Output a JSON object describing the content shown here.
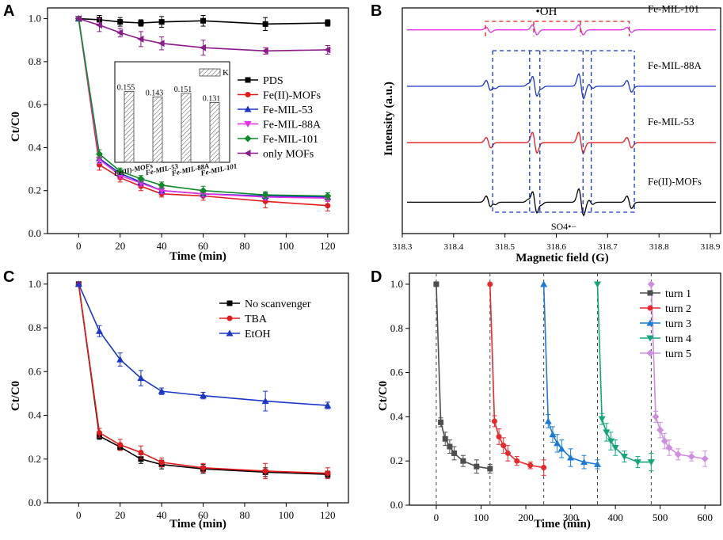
{
  "chart_data": [
    {
      "panel": "A",
      "type": "line",
      "xlabel": "Time (min)",
      "ylabel": "Ct/C0",
      "xlim": [
        -15,
        130
      ],
      "ylim": [
        0,
        1.05
      ],
      "xticks": [
        0,
        20,
        40,
        60,
        80,
        100,
        120
      ],
      "yticks": [
        0.0,
        0.2,
        0.4,
        0.6,
        0.8,
        1.0
      ],
      "xtick_labels": [
        "0",
        "20",
        "40",
        "60",
        "80",
        "100",
        "120"
      ],
      "ytick_labels": [
        "0.0",
        "0.2",
        "0.4",
        "0.6",
        "0.8",
        "1.0"
      ],
      "legend_position": "right",
      "x": [
        0,
        10,
        20,
        30,
        40,
        60,
        90,
        120
      ],
      "series": [
        {
          "name": "PDS",
          "color": "#000000",
          "marker": "square",
          "values": [
            1.0,
            0.995,
            0.985,
            0.98,
            0.985,
            0.99,
            0.975,
            0.98
          ],
          "err": [
            0.01,
            0.02,
            0.02,
            0.015,
            0.025,
            0.025,
            0.03,
            0.015
          ]
        },
        {
          "name": "Fe(II)-MOFs",
          "color": "#e31a1c",
          "marker": "circle",
          "values": [
            1.0,
            0.32,
            0.26,
            0.22,
            0.185,
            0.175,
            0.15,
            0.13
          ],
          "err": [
            0.0,
            0.025,
            0.02,
            0.02,
            0.015,
            0.02,
            0.03,
            0.025
          ]
        },
        {
          "name": "Fe-MIL-53",
          "color": "#1a35c8",
          "marker": "triangle-up",
          "values": [
            1.0,
            0.35,
            0.28,
            0.24,
            0.2,
            0.185,
            0.175,
            0.17
          ],
          "err": [
            0.0,
            0.02,
            0.015,
            0.015,
            0.015,
            0.015,
            0.015,
            0.02
          ]
        },
        {
          "name": "Fe-MIL-88A",
          "color": "#e62ee6",
          "marker": "triangle-down",
          "values": [
            1.0,
            0.345,
            0.27,
            0.235,
            0.2,
            0.185,
            0.17,
            0.165
          ],
          "err": [
            0.0,
            0.02,
            0.015,
            0.015,
            0.015,
            0.015,
            0.015,
            0.015
          ]
        },
        {
          "name": "Fe-MIL-101",
          "color": "#0f8a2a",
          "marker": "diamond",
          "values": [
            1.0,
            0.37,
            0.29,
            0.255,
            0.225,
            0.2,
            0.18,
            0.175
          ],
          "err": [
            0.0,
            0.02,
            0.015,
            0.015,
            0.015,
            0.02,
            0.015,
            0.015
          ]
        },
        {
          "name": "only MOFs",
          "color": "#8b1a8b",
          "marker": "triangle-left",
          "values": [
            1.0,
            0.97,
            0.935,
            0.905,
            0.885,
            0.865,
            0.85,
            0.855
          ],
          "err": [
            0.0,
            0.03,
            0.02,
            0.035,
            0.03,
            0.035,
            0.015,
            0.02
          ]
        }
      ],
      "inset": {
        "type": "bar",
        "legend_label": "K",
        "categories": [
          "Fe(II)-MOFs",
          "Fe-MIL-53",
          "Fe-MIL-88A",
          "Fe-MIL-101"
        ],
        "values": [
          0.155,
          0.143,
          0.151,
          0.131
        ],
        "value_labels": [
          "0.155",
          "0.143",
          "0.151",
          "0.131"
        ],
        "ylim": [
          0,
          0.22
        ]
      }
    },
    {
      "panel": "B",
      "type": "line",
      "xlabel": "Magnetic field (G)",
      "ylabel": "Intensity (a.u.)",
      "xlim": [
        318.3,
        318.92
      ],
      "xticks": [
        318.3,
        318.4,
        318.5,
        318.6,
        318.7,
        318.8,
        318.9
      ],
      "xtick_labels": [
        "318.3",
        "318.4",
        "318.5",
        "318.6",
        "318.7",
        "318.8",
        "318.9"
      ],
      "oh_label": "•OH",
      "so4_label": "SO4•−",
      "oh_peak_ratios": [
        1,
        2,
        2,
        1
      ],
      "series": [
        {
          "name": "Fe-MIL-101",
          "color": "#e62ee6",
          "baseline": 3.25,
          "amplitude": 0.12
        },
        {
          "name": "Fe-MIL-88A",
          "color": "#1a35c8",
          "baseline": 2.35,
          "amplitude": 0.28
        },
        {
          "name": "Fe-MIL-53",
          "color": "#e31a1c",
          "baseline": 1.45,
          "amplitude": 0.25
        },
        {
          "name": "Fe(II)-MOFs",
          "color": "#000000",
          "baseline": 0.5,
          "amplitude": 0.3
        }
      ]
    },
    {
      "panel": "C",
      "type": "line",
      "xlabel": "Time (min)",
      "ylabel": "Ct/C0",
      "xlim": [
        -15,
        130
      ],
      "ylim": [
        0,
        1.05
      ],
      "xticks": [
        0,
        20,
        40,
        60,
        80,
        100,
        120
      ],
      "yticks": [
        0.0,
        0.2,
        0.4,
        0.6,
        0.8,
        1.0
      ],
      "xtick_labels": [
        "0",
        "20",
        "40",
        "60",
        "80",
        "100",
        "120"
      ],
      "ytick_labels": [
        "0.0",
        "0.2",
        "0.4",
        "0.6",
        "0.8",
        "1.0"
      ],
      "legend_position": "top-right",
      "x": [
        0,
        10,
        20,
        30,
        40,
        60,
        90,
        120
      ],
      "series": [
        {
          "name": "No scanvenger",
          "color": "#000000",
          "marker": "square",
          "values": [
            1.0,
            0.305,
            0.255,
            0.2,
            0.175,
            0.155,
            0.14,
            0.13
          ],
          "err": [
            0.0,
            0.015,
            0.015,
            0.02,
            0.02,
            0.02,
            0.02,
            0.015
          ]
        },
        {
          "name": "TBA",
          "color": "#e31a1c",
          "marker": "circle",
          "values": [
            1.0,
            0.32,
            0.265,
            0.23,
            0.185,
            0.16,
            0.145,
            0.135
          ],
          "err": [
            0.0,
            0.02,
            0.025,
            0.03,
            0.02,
            0.02,
            0.035,
            0.025
          ]
        },
        {
          "name": "EtOH",
          "color": "#1a35c8",
          "marker": "triangle-up",
          "values": [
            1.0,
            0.785,
            0.655,
            0.57,
            0.51,
            0.49,
            0.465,
            0.445
          ],
          "err": [
            0.0,
            0.025,
            0.03,
            0.035,
            0.015,
            0.015,
            0.045,
            0.015
          ]
        }
      ]
    },
    {
      "panel": "D",
      "type": "line",
      "xlabel": "Time (min)",
      "ylabel": "Ct/C0",
      "xlim": [
        -60,
        635
      ],
      "ylim": [
        0,
        1.05
      ],
      "xticks": [
        0,
        100,
        200,
        300,
        400,
        500,
        600
      ],
      "yticks": [
        0.0,
        0.2,
        0.4,
        0.6,
        0.8,
        1.0
      ],
      "xtick_labels": [
        "0",
        "100",
        "200",
        "300",
        "400",
        "500",
        "600"
      ],
      "ytick_labels": [
        "0.0",
        "0.2",
        "0.4",
        "0.6",
        "0.8",
        "1.0"
      ],
      "legend_position": "top-right",
      "x_offsets": [
        0,
        120,
        240,
        360,
        480
      ],
      "x_rel": [
        0,
        10,
        20,
        30,
        40,
        60,
        90,
        120
      ],
      "series": [
        {
          "name": "turn 1",
          "color": "#4d4d4d",
          "marker": "square",
          "values": [
            1.0,
            0.375,
            0.3,
            0.265,
            0.235,
            0.2,
            0.175,
            0.165
          ],
          "err": [
            0.0,
            0.02,
            0.03,
            0.03,
            0.03,
            0.025,
            0.03,
            0.02
          ]
        },
        {
          "name": "turn 2",
          "color": "#e8282d",
          "marker": "circle",
          "values": [
            1.0,
            0.38,
            0.31,
            0.27,
            0.235,
            0.2,
            0.18,
            0.17
          ],
          "err": [
            0.0,
            0.025,
            0.035,
            0.035,
            0.035,
            0.02,
            0.015,
            0.035
          ]
        },
        {
          "name": "turn 3",
          "color": "#1a7ad6",
          "marker": "triangle-up",
          "values": [
            1.0,
            0.38,
            0.32,
            0.28,
            0.255,
            0.215,
            0.195,
            0.185
          ],
          "err": [
            0.0,
            0.03,
            0.035,
            0.04,
            0.04,
            0.04,
            0.03,
            0.02
          ]
        },
        {
          "name": "turn 4",
          "color": "#12a67a",
          "marker": "triangle-down",
          "values": [
            1.0,
            0.39,
            0.33,
            0.29,
            0.26,
            0.22,
            0.195,
            0.195
          ],
          "err": [
            0.0,
            0.025,
            0.04,
            0.04,
            0.035,
            0.025,
            0.025,
            0.04
          ]
        },
        {
          "name": "turn 5",
          "color": "#cf8de0",
          "marker": "diamond",
          "values": [
            1.0,
            0.4,
            0.34,
            0.29,
            0.26,
            0.23,
            0.22,
            0.21
          ],
          "err": [
            0.0,
            0.025,
            0.035,
            0.035,
            0.035,
            0.025,
            0.02,
            0.035
          ]
        }
      ]
    }
  ]
}
